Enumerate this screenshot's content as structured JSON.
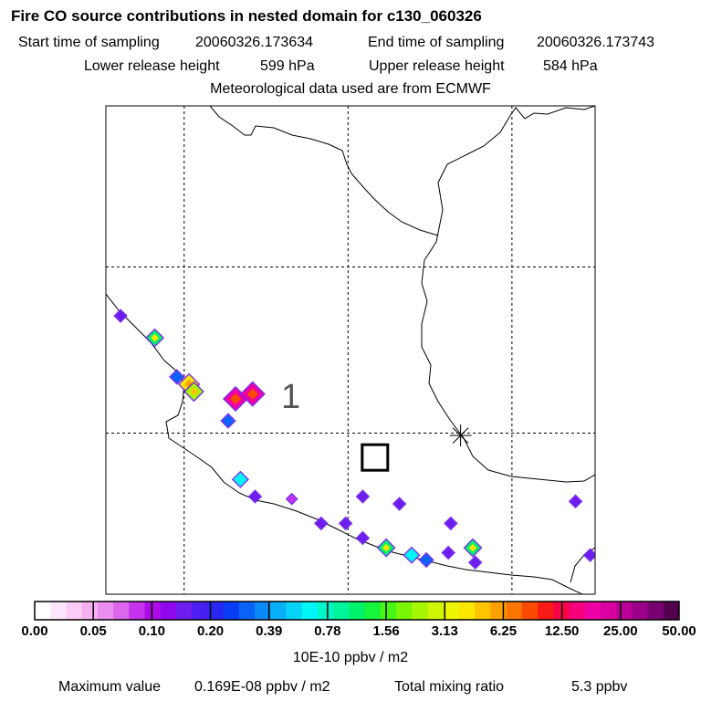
{
  "chart_data": {
    "type": "heatmap",
    "title": "Fire CO source contributions in nested domain for c130_060326",
    "header": {
      "start_label": "Start time of sampling",
      "start_value": "20060326.173634",
      "end_label": "End time of sampling",
      "end_value": "20060326.173743",
      "lower_label": "Lower release height",
      "lower_value": "599 hPa",
      "upper_label": "Upper release height",
      "upper_value": "584 hPa",
      "met_line": "Meteorological data used are from ECMWF"
    },
    "map_label": "1",
    "colorbar": {
      "unit": "10E-10 ppbv / m2",
      "tick_labels": [
        "0.00",
        "0.05",
        "0.10",
        "0.20",
        "0.39",
        "0.78",
        "1.56",
        "3.13",
        "6.25",
        "12.50",
        "25.00",
        "50.00"
      ],
      "colors": [
        "#ffffff",
        "#fde6fb",
        "#fbcdf6",
        "#f5b1f2",
        "#eb8ef0",
        "#dc66ee",
        "#c633ee",
        "#ad0ce8",
        "#8f08ed",
        "#6d1ded",
        "#4b1ff0",
        "#2a26f4",
        "#0b3df7",
        "#0963f7",
        "#0b8af7",
        "#0ab0f7",
        "#06d3f7",
        "#00f6f4",
        "#00f5c7",
        "#00f49a",
        "#00f26a",
        "#17f43c",
        "#48f514",
        "#7af508",
        "#a5f505",
        "#cdf504",
        "#eef502",
        "#fbe600",
        "#fcc500",
        "#fca000",
        "#fb7600",
        "#fa4a00",
        "#f71b15",
        "#f70447",
        "#f5007a",
        "#ef00a5",
        "#d8009f",
        "#bb0095",
        "#9b0088",
        "#780070",
        "#55004f"
      ]
    },
    "footer": {
      "max_label": "Maximum value",
      "max_value": "0.169E-08 ppbv / m2",
      "total_label": "Total mixing ratio",
      "total_value": "5.3 ppbv"
    },
    "grid_lines": {
      "vertical_fractions": [
        0.16,
        0.495,
        0.83
      ],
      "horizontal_fractions": [
        0.33,
        0.67
      ]
    },
    "receptor_box": {
      "x": 0.55,
      "y": 0.72
    },
    "release_point": {
      "x": 0.725,
      "y": 0.675
    },
    "hotspots": [
      {
        "x": 0.03,
        "y": 0.43,
        "level": "0.10"
      },
      {
        "x": 0.1,
        "y": 0.475,
        "level": "0.78"
      },
      {
        "x": 0.145,
        "y": 0.555,
        "level": "0.20"
      },
      {
        "x": 0.17,
        "y": 0.57,
        "level": "3.13"
      },
      {
        "x": 0.18,
        "y": 0.585,
        "level": "1.56"
      },
      {
        "x": 0.265,
        "y": 0.6,
        "level": "12.50"
      },
      {
        "x": 0.3,
        "y": 0.59,
        "level": "12.50"
      },
      {
        "x": 0.25,
        "y": 0.645,
        "level": "0.20"
      },
      {
        "x": 0.275,
        "y": 0.765,
        "level": "0.39"
      },
      {
        "x": 0.305,
        "y": 0.8,
        "level": "0.10"
      },
      {
        "x": 0.38,
        "y": 0.805,
        "level": "0.05"
      },
      {
        "x": 0.44,
        "y": 0.855,
        "level": "0.10"
      },
      {
        "x": 0.49,
        "y": 0.855,
        "level": "0.10"
      },
      {
        "x": 0.525,
        "y": 0.8,
        "level": "0.10"
      },
      {
        "x": 0.6,
        "y": 0.815,
        "level": "0.10"
      },
      {
        "x": 0.525,
        "y": 0.885,
        "level": "0.10"
      },
      {
        "x": 0.573,
        "y": 0.905,
        "level": "0.78"
      },
      {
        "x": 0.625,
        "y": 0.92,
        "level": "0.39"
      },
      {
        "x": 0.655,
        "y": 0.93,
        "level": "0.20"
      },
      {
        "x": 0.7,
        "y": 0.915,
        "level": "0.10"
      },
      {
        "x": 0.75,
        "y": 0.905,
        "level": "0.78"
      },
      {
        "x": 0.705,
        "y": 0.855,
        "level": "0.10"
      },
      {
        "x": 0.755,
        "y": 0.935,
        "level": "0.10"
      },
      {
        "x": 0.96,
        "y": 0.81,
        "level": "0.10"
      },
      {
        "x": 0.99,
        "y": 0.92,
        "level": "0.10"
      }
    ]
  }
}
